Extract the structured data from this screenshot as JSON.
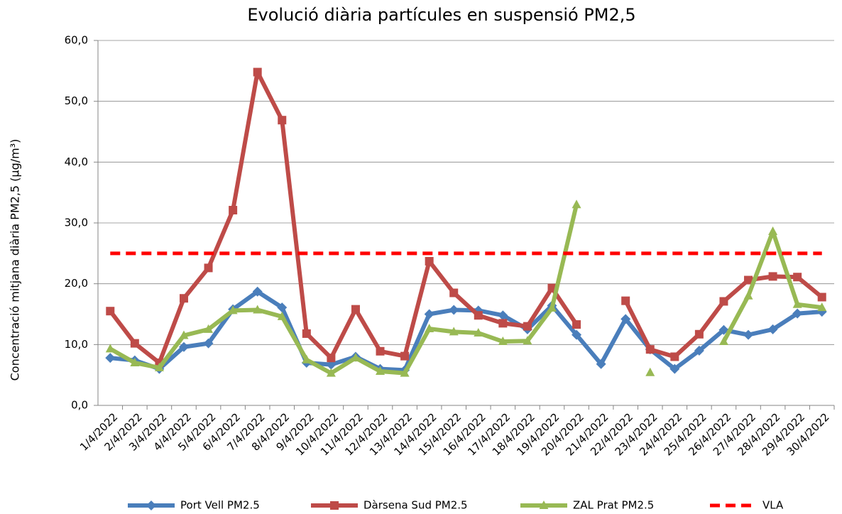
{
  "chart_data": {
    "type": "line",
    "title": "Evolució diària partícules en suspensió  PM2,5",
    "y_label": "Concentració mitjana diària PM2,5 (µg/m³)",
    "categories": [
      "1/4/2022",
      "2/4/2022",
      "3/4/2022",
      "4/4/2022",
      "5/4/2022",
      "6/4/2022",
      "7/4/2022",
      "8/4/2022",
      "9/4/2022",
      "10/4/2022",
      "11/4/2022",
      "12/4/2022",
      "13/4/2022",
      "14/4/2022",
      "15/4/2022",
      "16/4/2022",
      "17/4/2022",
      "18/4/2022",
      "19/4/2022",
      "20/4/2022",
      "21/4/2022",
      "22/4/2022",
      "23/4/2022",
      "24/4/2022",
      "25/4/2022",
      "26/4/2022",
      "27/4/2022",
      "28/4/2022",
      "29/4/2022",
      "30/4/2022"
    ],
    "series": [
      {
        "name": "Port Vell PM2.5",
        "color": "#4a7ebb",
        "marker": "diamond",
        "values": [
          7.8,
          7.4,
          6.0,
          9.6,
          10.2,
          15.8,
          18.7,
          16.1,
          7.0,
          6.7,
          8.0,
          6.0,
          5.8,
          15.0,
          15.7,
          15.6,
          14.8,
          12.5,
          16.4,
          11.6,
          6.8,
          14.2,
          9.2,
          6.0,
          9.0,
          12.4,
          11.6,
          12.5,
          15.1,
          15.4
        ]
      },
      {
        "name": "Dàrsena Sud PM2.5",
        "color": "#be4b48",
        "marker": "square",
        "values": [
          15.5,
          10.2,
          7.0,
          17.6,
          22.6,
          32.1,
          54.8,
          46.9,
          11.8,
          7.8,
          15.8,
          8.9,
          8.1,
          23.7,
          18.5,
          14.8,
          13.5,
          13.0,
          19.3,
          13.3,
          null,
          17.2,
          9.2,
          8.0,
          11.7,
          17.1,
          20.6,
          21.2,
          21.1,
          17.8
        ]
      },
      {
        "name": "ZAL Prat PM2.5",
        "color": "#98b954",
        "marker": "triangle",
        "values": [
          9.3,
          7.0,
          6.2,
          11.5,
          12.5,
          15.6,
          15.7,
          14.6,
          7.5,
          5.3,
          7.8,
          5.6,
          5.3,
          12.6,
          12.1,
          11.9,
          10.5,
          10.6,
          16.0,
          33.0,
          null,
          null,
          5.4,
          null,
          null,
          10.5,
          18.0,
          28.6,
          16.6,
          16.1
        ]
      },
      {
        "name": "VLA",
        "color": "#ff0000",
        "dashed": true,
        "values": [
          25,
          25,
          25,
          25,
          25,
          25,
          25,
          25,
          25,
          25,
          25,
          25,
          25,
          25,
          25,
          25,
          25,
          25,
          25,
          25,
          25,
          25,
          25,
          25,
          25,
          25,
          25,
          25,
          25,
          25
        ]
      }
    ],
    "ylim": [
      0,
      60
    ],
    "yticks": [
      {
        "value": 0,
        "label": "0,0"
      },
      {
        "value": 10,
        "label": "10,0"
      },
      {
        "value": 20,
        "label": "20,0"
      },
      {
        "value": 30,
        "label": "30,0"
      },
      {
        "value": 40,
        "label": "40,0"
      },
      {
        "value": 50,
        "label": "50,0"
      },
      {
        "value": 60,
        "label": "60,0"
      }
    ],
    "grid": true
  }
}
